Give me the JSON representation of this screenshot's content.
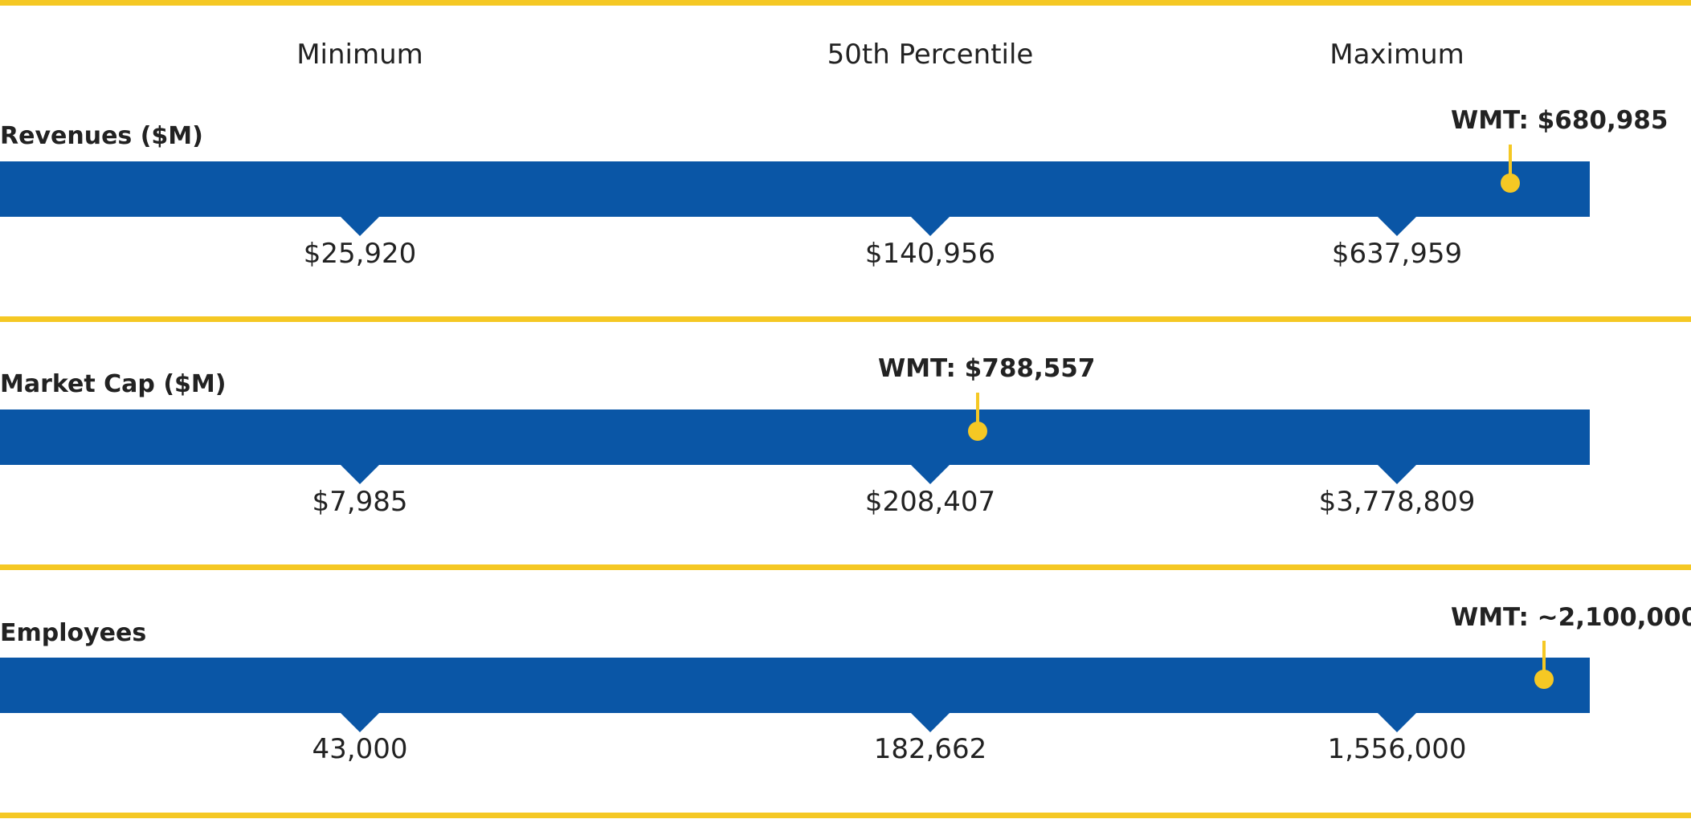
{
  "colors": {
    "bar": "#0a56a6",
    "accent": "#f5c824",
    "text": "#222222"
  },
  "chart_data": {
    "type": "table",
    "columns": [
      "Minimum",
      "50th Percentile",
      "Maximum"
    ],
    "rows": [
      {
        "label": "Revenues ($M)",
        "values": [
          "$25,920",
          "$140,956",
          "$637,959"
        ],
        "marker_label": "WMT: $680,985"
      },
      {
        "label": "Market Cap ($M)",
        "values": [
          "$7,985",
          "$208,407",
          "$3,778,809"
        ],
        "marker_label": "WMT: $788,557"
      },
      {
        "label": "Employees",
        "values": [
          "43,000",
          "182,662",
          "1,556,000"
        ],
        "marker_label": "WMT: ~2,100,000"
      }
    ]
  }
}
